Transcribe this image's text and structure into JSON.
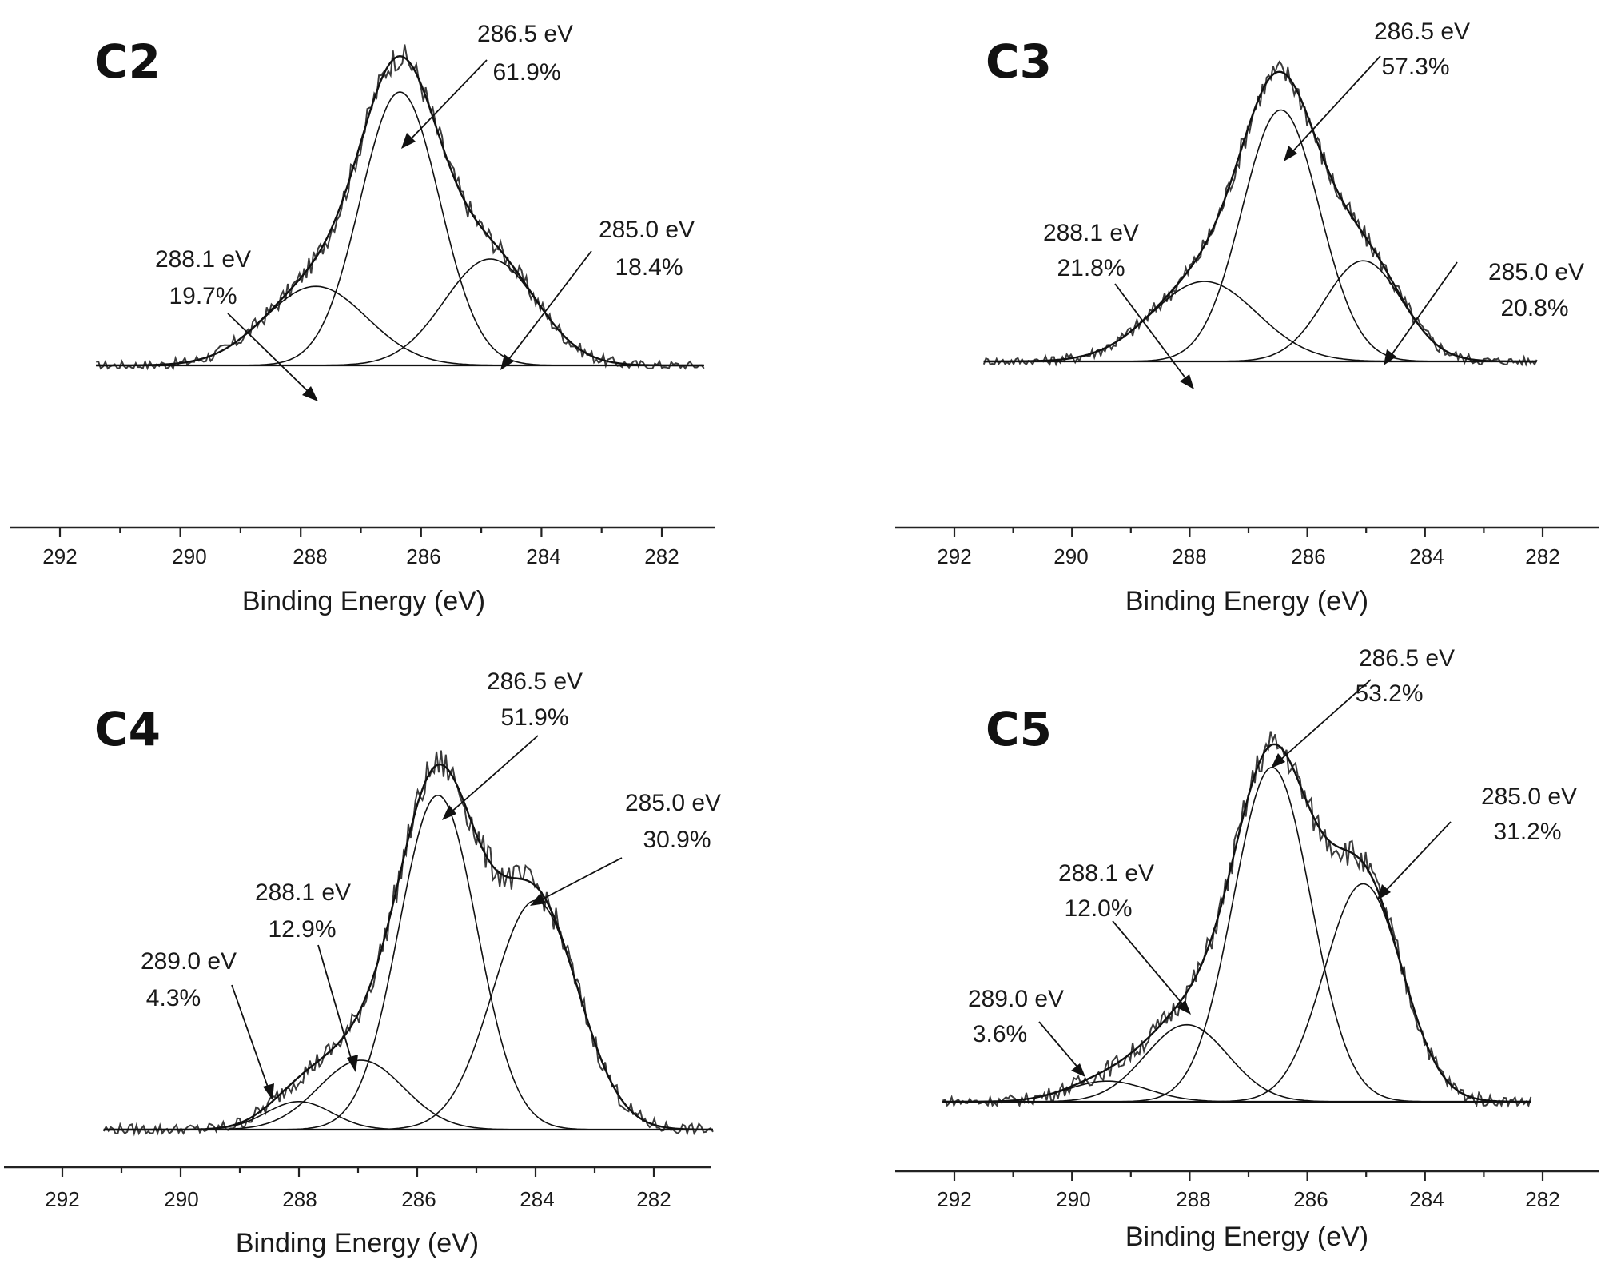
{
  "chart_data": [
    {
      "type": "line",
      "panel_label": "C2",
      "xlabel": "Binding Energy (eV)",
      "ylabel": "",
      "xlim": [
        293,
        281
      ],
      "x_reversed": true,
      "x_ticks": [
        "292",
        "290",
        "288",
        "286",
        "284",
        "282"
      ],
      "x_tick_values": [
        292,
        290,
        288,
        286,
        284,
        282
      ],
      "data_range": [
        291.4,
        281.3
      ],
      "series": [
        {
          "name": "288.1 eV",
          "label_energy": "288.1 eV",
          "label_percent": "19.7%",
          "center": 287.75,
          "height": 0.26,
          "fwhm": 2.0
        },
        {
          "name": "286.5 eV",
          "label_energy": "286.5 eV",
          "label_percent": "61.9%",
          "center": 286.35,
          "height": 0.9,
          "fwhm": 1.55
        },
        {
          "name": "285.0 eV",
          "label_energy": "285.0 eV",
          "label_percent": "18.4%",
          "center": 284.85,
          "height": 0.35,
          "fwhm": 1.8
        }
      ]
    },
    {
      "type": "line",
      "panel_label": "C3",
      "xlabel": "Binding Energy (eV)",
      "ylabel": "",
      "xlim": [
        293,
        281
      ],
      "x_reversed": true,
      "x_ticks": [
        "292",
        "290",
        "288",
        "286",
        "284",
        "282"
      ],
      "x_tick_values": [
        292,
        290,
        288,
        286,
        284,
        282
      ],
      "data_range": [
        291.5,
        282.1
      ],
      "series": [
        {
          "name": "288.1 eV",
          "label_energy": "288.1 eV",
          "label_percent": "21.8%",
          "center": 287.75,
          "height": 0.27,
          "fwhm": 2.1
        },
        {
          "name": "286.5 eV",
          "label_energy": "286.5 eV",
          "label_percent": "57.3%",
          "center": 286.45,
          "height": 0.85,
          "fwhm": 1.55
        },
        {
          "name": "285.0 eV",
          "label_energy": "285.0 eV",
          "label_percent": "20.8%",
          "center": 285.05,
          "height": 0.34,
          "fwhm": 1.55
        }
      ]
    },
    {
      "type": "line",
      "panel_label": "C4",
      "xlabel": "Binding Energy (eV)",
      "ylabel": "",
      "xlim": [
        293,
        281
      ],
      "x_reversed": true,
      "x_ticks": [
        "292",
        "290",
        "288",
        "286",
        "284",
        "282"
      ],
      "x_tick_values": [
        292,
        290,
        288,
        286,
        284,
        282
      ],
      "data_range": [
        291.3,
        281.0
      ],
      "series": [
        {
          "name": "289.0 eV",
          "label_energy": "289.0 eV",
          "label_percent": "4.3%",
          "center": 288.0,
          "height": 0.075,
          "fwhm": 1.3
        },
        {
          "name": "288.1 eV",
          "label_energy": "288.1 eV",
          "label_percent": "12.9%",
          "center": 286.95,
          "height": 0.185,
          "fwhm": 1.7
        },
        {
          "name": "286.5 eV",
          "label_energy": "286.5 eV",
          "label_percent": "51.9%",
          "center": 285.65,
          "height": 0.89,
          "fwhm": 1.55
        },
        {
          "name": "285.0 eV",
          "label_energy": "285.0 eV",
          "label_percent": "30.9%",
          "center": 284.0,
          "height": 0.61,
          "fwhm": 1.7
        }
      ]
    },
    {
      "type": "line",
      "panel_label": "C5",
      "xlabel": "Binding Energy (eV)",
      "ylabel": "",
      "xlim": [
        293,
        281
      ],
      "x_reversed": true,
      "x_ticks": [
        "292",
        "290",
        "288",
        "286",
        "284",
        "282"
      ],
      "x_tick_values": [
        292,
        290,
        288,
        286,
        284,
        282
      ],
      "data_range": [
        292.2,
        282.2
      ],
      "series": [
        {
          "name": "289.0 eV",
          "label_energy": "289.0 eV",
          "label_percent": "3.6%",
          "center": 289.4,
          "height": 0.055,
          "fwhm": 1.6
        },
        {
          "name": "288.1 eV",
          "label_energy": "288.1 eV",
          "label_percent": "12.0%",
          "center": 288.05,
          "height": 0.205,
          "fwhm": 1.65
        },
        {
          "name": "286.5 eV",
          "label_energy": "286.5 eV",
          "label_percent": "53.2%",
          "center": 286.6,
          "height": 0.89,
          "fwhm": 1.55
        },
        {
          "name": "285.0 eV",
          "label_energy": "285.0 eV",
          "label_percent": "31.2%",
          "center": 285.05,
          "height": 0.58,
          "fwhm": 1.55
        }
      ]
    }
  ]
}
